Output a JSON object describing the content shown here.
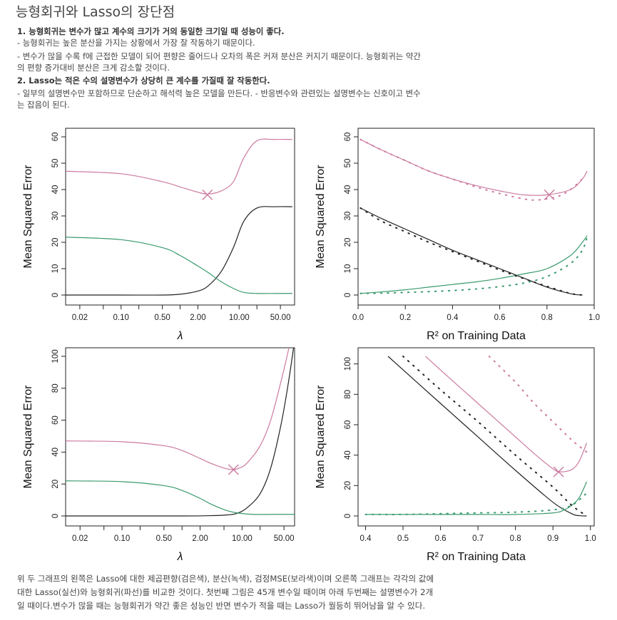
{
  "title": "능형회귀와 Lasso의 장단점",
  "intro": {
    "point1": "1. 능형회귀는 변수가 많고 계수의 크기가 거의 동일한 크기일 때 성능이 좋다.",
    "point1_sub1": " - 능형회귀는 높은 분산을 가지는 상황에서 가장 잘 작동하기 때문이다.",
    "point1_sub2a": " - 변수가 많을 수록 f에 근접한 모델이 되어 편향은 줄어드나 오차의 폭은 커져 분산은 커지기 때문이다. 능형회귀는 약간",
    "point1_sub2b": "의 편향 증가대비 분산은 크게 감소할 것이다.",
    "point2": "2. Lasso는 적은 수의 설명변수가 상당히 큰 계수를 가질때 잘 작동한다.",
    "point2_sub_a": "- 일부의 설명변수만 포함하므로 단순하고 해석력 높은 모델을 만든다. - 반응변수와 관련있는 설명변수는 신호이고 변수",
    "point2_sub_b": "는 잡음이 된다."
  },
  "caption": {
    "line1": "위 두 그래프의 왼쪽은 Lasso에 대한 제곱편향(검은색), 분산(녹색), 검정MSE(보라색)이며 오른쪽 그래프는 각각의 값에",
    "line2": "대한 Lasso(실선)와 능형회귀(파선)를 비교한 것이다. 첫번째 그림은 45개 변수일 때이며 아래 두번째는 설명변수가 2개",
    "line3": "일 때이다.변수가 많을 때는 능형회귀가 약간 좋은 성능인 반면 변수가 적을 때는 Lasso가 월등히 뛰어남을 알 수 있다."
  },
  "colors": {
    "bias": "#222222",
    "variance": "#3a9a6e",
    "mse": "#cc7aa0"
  },
  "chart_data": [
    {
      "type": "line",
      "ylabel": "Mean Squared Error",
      "xlabel": "λ",
      "xscale": "log",
      "xticks": [
        "0.02",
        "0.10",
        "0.50",
        "2.00",
        "10.00",
        "50.00"
      ],
      "yticks": [
        "0",
        "10",
        "20",
        "30",
        "40",
        "50",
        "60"
      ],
      "ylim": [
        0,
        60
      ],
      "series": [
        {
          "x": [
            0.01,
            0.1,
            0.5,
            1,
            2,
            3,
            5,
            8,
            12,
            20,
            40,
            80
          ],
          "values": [
            0,
            0,
            0,
            0.3,
            1.5,
            3.5,
            9,
            18,
            28,
            33,
            33.5,
            33.5
          ]
        },
        {
          "x": [
            0.01,
            0.1,
            0.5,
            1,
            2,
            3,
            5,
            8,
            12,
            20,
            40,
            80
          ],
          "values": [
            22,
            21,
            18,
            15,
            11,
            8.5,
            5,
            2.5,
            1,
            0.6,
            0.6,
            0.6
          ]
        },
        {
          "x": [
            0.01,
            0.1,
            0.5,
            1,
            2,
            3,
            5,
            8,
            12,
            20,
            40,
            80
          ],
          "values": [
            47,
            46,
            43,
            41,
            39,
            38.3,
            39.5,
            43,
            52,
            58.5,
            59,
            59
          ]
        }
      ],
      "marker": {
        "x": 2.9,
        "y": 38
      }
    },
    {
      "type": "line",
      "ylabel": "Mean Squared Error",
      "xlabel": "R² on Training Data",
      "xticks": [
        "0.0",
        "0.2",
        "0.4",
        "0.6",
        "0.8",
        "1.0"
      ],
      "yticks": [
        "0",
        "10",
        "20",
        "30",
        "40",
        "50",
        "60"
      ],
      "xlim": [
        0,
        1
      ],
      "ylim": [
        0,
        60
      ],
      "series": [
        {
          "x": [
            0.01,
            0.1,
            0.2,
            0.3,
            0.4,
            0.5,
            0.6,
            0.7,
            0.8,
            0.9,
            0.95
          ],
          "values": [
            33,
            29,
            25,
            21,
            17,
            13.5,
            10,
            6.5,
            3,
            0.5,
            0
          ]
        },
        {
          "x": [
            0.01,
            0.1,
            0.2,
            0.3,
            0.4,
            0.5,
            0.6,
            0.7,
            0.8,
            0.9,
            0.95,
            0.97
          ],
          "values": [
            0.6,
            1.2,
            2,
            3,
            4,
            5,
            6.3,
            8,
            10,
            15,
            20,
            22.5
          ]
        },
        {
          "x": [
            0.01,
            0.1,
            0.2,
            0.3,
            0.4,
            0.5,
            0.6,
            0.7,
            0.8,
            0.9,
            0.95,
            0.97
          ],
          "values": [
            59,
            55,
            51,
            47,
            44,
            41.5,
            39.5,
            38,
            38,
            40,
            44,
            47
          ]
        },
        {
          "x": [
            0.01,
            0.1,
            0.2,
            0.3,
            0.4,
            0.5,
            0.6,
            0.7,
            0.8,
            0.9,
            0.95
          ],
          "values": [
            33,
            28,
            24,
            20,
            16.5,
            13,
            9.5,
            6.3,
            3.3,
            0.6,
            0
          ]
        },
        {
          "x": [
            0.01,
            0.1,
            0.2,
            0.3,
            0.4,
            0.5,
            0.6,
            0.7,
            0.8,
            0.9,
            0.95,
            0.97
          ],
          "values": [
            0.6,
            0.7,
            1,
            1.3,
            1.7,
            2.3,
            3.2,
            4.5,
            7,
            12,
            17,
            22
          ]
        },
        {
          "x": [
            0.01,
            0.1,
            0.2,
            0.3,
            0.4,
            0.5,
            0.6,
            0.7,
            0.75,
            0.8,
            0.85,
            0.9,
            0.95
          ],
          "values": [
            59,
            55,
            51,
            47,
            44,
            41,
            38.5,
            36.5,
            36,
            36.5,
            37.5,
            40,
            44
          ]
        }
      ],
      "marker": {
        "x": 0.81,
        "y": 38
      }
    },
    {
      "type": "line",
      "ylabel": "Mean Squared Error",
      "xlabel": "λ",
      "xscale": "log",
      "xticks": [
        "0.02",
        "0.10",
        "0.50",
        "2.00",
        "10.00",
        "50.00"
      ],
      "yticks": [
        "0",
        "20",
        "40",
        "60",
        "80",
        "100"
      ],
      "ylim": [
        0,
        100
      ],
      "series": [
        {
          "x": [
            0.01,
            1,
            3,
            5,
            8,
            12,
            20,
            30,
            45,
            60,
            75
          ],
          "values": [
            0,
            0,
            0.2,
            0.5,
            1.5,
            5,
            14,
            30,
            58,
            85,
            110
          ]
        },
        {
          "x": [
            0.01,
            0.1,
            0.5,
            1,
            2,
            3,
            5,
            8,
            15,
            30,
            80
          ],
          "values": [
            22,
            21.5,
            19,
            16,
            11,
            7.5,
            4,
            2,
            1,
            1,
            1
          ]
        },
        {
          "x": [
            0.01,
            0.1,
            0.5,
            1,
            2,
            3,
            5,
            7,
            9,
            12,
            20,
            30,
            45,
            60,
            75
          ],
          "values": [
            47,
            46.5,
            44,
            41,
            36,
            33,
            30,
            29,
            30,
            33,
            44,
            60,
            85,
            105,
            125
          ]
        }
      ],
      "marker": {
        "x": 7.2,
        "y": 29
      }
    },
    {
      "type": "line",
      "ylabel": "Mean Squared Error",
      "xlabel": "R² on Training Data",
      "xticks": [
        "0.4",
        "0.5",
        "0.6",
        "0.7",
        "0.8",
        "0.9",
        "1.0"
      ],
      "yticks": [
        "0",
        "20",
        "40",
        "60",
        "80",
        "100"
      ],
      "xlim": [
        0.38,
        1.01
      ],
      "ylim": [
        0,
        105
      ],
      "series": [
        {
          "x": [
            0.46,
            0.6,
            0.7,
            0.8,
            0.9,
            0.95,
            0.97,
            0.99
          ],
          "values": [
            105,
            74,
            52,
            30,
            9,
            1.5,
            0.2,
            0
          ]
        },
        {
          "x": [
            0.4,
            0.5,
            0.6,
            0.7,
            0.8,
            0.9,
            0.93,
            0.95,
            0.97,
            0.99
          ],
          "values": [
            1,
            1,
            1,
            1,
            1,
            2,
            4,
            7,
            12,
            22.5
          ]
        },
        {
          "x": [
            0.56,
            0.6,
            0.7,
            0.8,
            0.85,
            0.9,
            0.92,
            0.95,
            0.97,
            0.99
          ],
          "values": [
            105,
            96,
            74,
            52,
            41,
            31,
            29,
            30.5,
            36,
            48
          ]
        },
        {
          "x": [
            0.5,
            0.6,
            0.7,
            0.8,
            0.9,
            0.95,
            0.99
          ],
          "values": [
            105,
            83,
            62,
            40,
            19,
            7,
            0
          ]
        },
        {
          "x": [
            0.4,
            0.5,
            0.6,
            0.7,
            0.8,
            0.9,
            0.95,
            0.99
          ],
          "values": [
            1,
            1,
            1.5,
            2,
            2.5,
            4,
            7,
            15
          ]
        },
        {
          "x": [
            0.73,
            0.8,
            0.85,
            0.9,
            0.95,
            0.99
          ],
          "values": [
            105,
            88,
            74,
            62,
            50,
            42
          ]
        }
      ],
      "marker": {
        "x": 0.915,
        "y": 29
      }
    }
  ]
}
